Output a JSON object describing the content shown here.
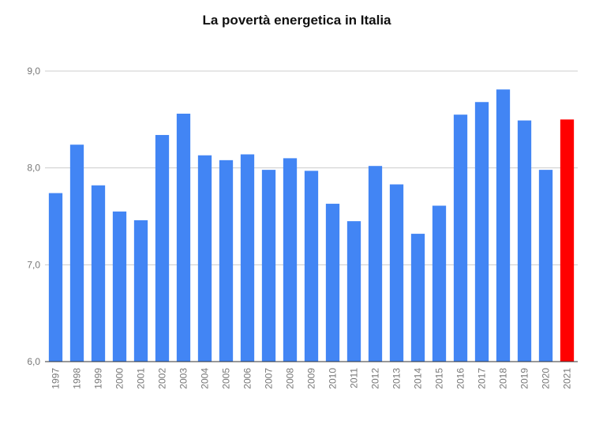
{
  "chart_data": {
    "type": "bar",
    "title": "La povertà energetica in Italia",
    "xlabel": "",
    "ylabel": "",
    "ylim": [
      6.0,
      9.0
    ],
    "yticks": [
      "6,0",
      "7,0",
      "8,0",
      "9,0"
    ],
    "ytick_values": [
      6,
      7,
      8,
      9
    ],
    "grid": true,
    "categories": [
      "1997",
      "1998",
      "1999",
      "2000",
      "2001",
      "2002",
      "2003",
      "2004",
      "2005",
      "2006",
      "2007",
      "2008",
      "2009",
      "2010",
      "2011",
      "2012",
      "2013",
      "2014",
      "2015",
      "2016",
      "2017",
      "2018",
      "2019",
      "2020",
      "2021"
    ],
    "values": [
      7.74,
      8.24,
      7.82,
      7.55,
      7.46,
      8.34,
      8.56,
      8.13,
      8.08,
      8.14,
      7.98,
      8.1,
      7.97,
      7.63,
      7.45,
      8.02,
      7.83,
      7.32,
      7.61,
      8.55,
      8.68,
      8.81,
      8.49,
      7.98,
      8.5
    ],
    "colors": {
      "bar": "#4285f4",
      "highlight": "#ff0000",
      "highlight_category": "2021",
      "grid": "#cccccc",
      "axis": "#333333"
    }
  }
}
